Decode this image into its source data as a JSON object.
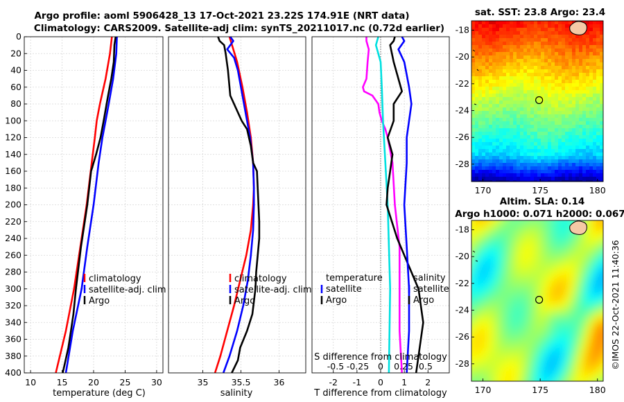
{
  "figure": {
    "title_line1": "Argo profile: aoml 5906428_13 17-Oct-2021 23.22S 174.91E (NRT data)",
    "title_line2": "Climatology: CARS2009. Satellite-adj clim: synTS_20211017.nc (0.72d earlier)",
    "copyright": "©IMOS 22-Oct-2021 11:40:36"
  },
  "colors": {
    "climatology": "#ff0000",
    "satellite": "#0000ff",
    "argo": "#000000",
    "temp_diff_argo": "#ff00ff",
    "temp_diff_sat": "#00e0e0"
  },
  "chart_data": [
    {
      "type": "line",
      "title": "",
      "xlabel": "temperature (deg C)",
      "ylabel": "",
      "xlim": [
        9,
        31
      ],
      "ylim": [
        400,
        0
      ],
      "xticks": [
        10,
        15,
        20,
        25,
        30
      ],
      "yticks": [
        0,
        20,
        40,
        60,
        80,
        100,
        120,
        140,
        160,
        180,
        200,
        220,
        240,
        260,
        280,
        300,
        320,
        340,
        360,
        380,
        400
      ],
      "legend": [
        "climatology",
        "satellite-adj. clim",
        "Argo"
      ],
      "series": [
        {
          "name": "climatology",
          "color": "#ff0000",
          "depth": [
            0,
            20,
            50,
            80,
            100,
            120,
            150,
            200,
            250,
            300,
            350,
            400
          ],
          "values": [
            22.9,
            22.6,
            21.9,
            21.0,
            20.5,
            20.2,
            19.7,
            18.9,
            17.9,
            16.9,
            15.6,
            14.0
          ]
        },
        {
          "name": "satellite-adj. clim",
          "color": "#0000ff",
          "depth": [
            0,
            20,
            50,
            80,
            100,
            120,
            150,
            200,
            250,
            300,
            350,
            400
          ],
          "values": [
            23.7,
            23.6,
            23.1,
            22.4,
            21.9,
            21.4,
            20.8,
            20.0,
            19.0,
            18.1,
            16.7,
            15.6
          ]
        },
        {
          "name": "Argo",
          "color": "#000000",
          "depth": [
            0,
            10,
            30,
            50,
            70,
            100,
            120,
            140,
            160,
            200,
            250,
            300,
            330,
            350,
            370,
            400
          ],
          "values": [
            23.5,
            23.3,
            23.2,
            22.8,
            22.3,
            21.6,
            21.1,
            20.4,
            19.6,
            19.0,
            18.0,
            17.2,
            16.8,
            16.4,
            16.0,
            15.1
          ]
        }
      ]
    },
    {
      "type": "line",
      "title": "",
      "xlabel": "salinity",
      "ylabel": "",
      "xlim": [
        34.55,
        36.35
      ],
      "ylim": [
        400,
        0
      ],
      "xticks": [
        35,
        35.5,
        36
      ],
      "legend": [
        "climatology",
        "satellite-adj. clim",
        "Argo"
      ],
      "series": [
        {
          "name": "climatology",
          "color": "#ff0000",
          "depth": [
            0,
            30,
            60,
            90,
            120,
            150,
            180,
            200,
            230,
            260,
            290,
            320,
            350,
            380,
            400
          ],
          "values": [
            35.35,
            35.45,
            35.52,
            35.58,
            35.63,
            35.66,
            35.67,
            35.66,
            35.63,
            35.57,
            35.49,
            35.41,
            35.32,
            35.23,
            35.16
          ]
        },
        {
          "name": "satellite-adj. clim",
          "color": "#0000ff",
          "depth": [
            0,
            5,
            15,
            25,
            40,
            60,
            90,
            120,
            150,
            180,
            200,
            230,
            260,
            290,
            320,
            350,
            380,
            400
          ],
          "values": [
            35.36,
            35.4,
            35.32,
            35.41,
            35.46,
            35.5,
            35.56,
            35.62,
            35.66,
            35.67,
            35.67,
            35.66,
            35.63,
            35.59,
            35.53,
            35.45,
            35.35,
            35.27
          ]
        },
        {
          "name": "Argo",
          "color": "#000000",
          "depth": [
            0,
            5,
            10,
            20,
            40,
            70,
            100,
            110,
            130,
            150,
            160,
            180,
            200,
            220,
            240,
            260,
            280,
            300,
            330,
            350,
            370,
            385,
            400
          ],
          "values": [
            35.2,
            35.22,
            35.28,
            35.3,
            35.33,
            35.36,
            35.51,
            35.58,
            35.63,
            35.66,
            35.71,
            35.72,
            35.73,
            35.74,
            35.74,
            35.72,
            35.7,
            35.69,
            35.65,
            35.58,
            35.49,
            35.46,
            35.38
          ]
        }
      ]
    },
    {
      "type": "line",
      "title": "",
      "xlabel": "T difference from climatology",
      "ylabel": "",
      "xlim": [
        -2.9,
        2.9
      ],
      "ylim": [
        400,
        0
      ],
      "xticks": [
        -2,
        -1,
        0,
        1,
        2
      ],
      "top_axis_label": "S difference from climatology",
      "top_ticks": [
        "-0.5",
        "-0.25",
        "0",
        "0.25",
        "0.5"
      ],
      "legend_left_header": "temperature",
      "legend_right_header": "salinity",
      "legend": [
        "satellite",
        "Argo"
      ],
      "legend_right": [
        "satellite",
        "Argo"
      ],
      "series": [
        {
          "name": "T diff Argo",
          "color": "#ff00ff",
          "depth": [
            0,
            5,
            15,
            30,
            50,
            60,
            65,
            70,
            80,
            90,
            100,
            110,
            120,
            150,
            200,
            250,
            300,
            350,
            400
          ],
          "values": [
            -0.6,
            -0.6,
            -0.5,
            -0.55,
            -0.6,
            -0.75,
            -0.7,
            -0.35,
            -0.1,
            -0.05,
            0.05,
            0.2,
            0.3,
            0.5,
            0.6,
            0.8,
            0.8,
            0.8,
            0.9
          ]
        },
        {
          "name": "T diff satellite",
          "color": "#00e0e0",
          "depth": [
            0,
            10,
            30,
            60,
            100,
            150,
            200,
            300,
            400
          ],
          "values": [
            -0.1,
            -0.2,
            0.0,
            0.05,
            0.1,
            0.2,
            0.3,
            0.4,
            0.35
          ]
        },
        {
          "name": "S diff Argo",
          "color": "#000000",
          "depth": [
            0,
            5,
            10,
            30,
            50,
            65,
            80,
            100,
            120,
            140,
            160,
            180,
            200,
            240,
            300,
            340,
            360,
            380,
            400
          ],
          "values": [
            0.6,
            0.55,
            0.4,
            0.55,
            0.75,
            0.9,
            0.55,
            0.55,
            0.3,
            0.5,
            0.4,
            0.3,
            0.25,
            0.7,
            1.6,
            1.8,
            1.7,
            1.6,
            1.5
          ]
        },
        {
          "name": "S diff satellite",
          "color": "#0000ff",
          "depth": [
            0,
            5,
            15,
            30,
            60,
            80,
            100,
            120,
            150,
            200,
            250,
            300,
            350,
            400
          ],
          "values": [
            0.9,
            1.0,
            0.75,
            1.0,
            1.2,
            1.3,
            1.2,
            1.1,
            1.1,
            1.0,
            1.1,
            1.2,
            1.2,
            1.1
          ]
        }
      ]
    },
    {
      "type": "heatmap",
      "title": "sat. SST: 23.8 Argo: 23.4",
      "xticks": [
        170,
        175,
        180
      ],
      "yticks": [
        -18,
        -20,
        -22,
        -24,
        -26,
        -28
      ],
      "xlim": [
        169,
        180.5
      ],
      "ylim": [
        -29.3,
        -17.3
      ],
      "profile_marker": {
        "lon": 174.91,
        "lat": -23.22
      }
    },
    {
      "type": "heatmap",
      "title": "Altim. SLA: 0.14",
      "subtitle": "Argo h1000: 0.071 h2000: 0.067",
      "xticks": [
        170,
        175,
        180
      ],
      "yticks": [
        -18,
        -20,
        -22,
        -24,
        -26,
        -28
      ],
      "xlim": [
        169,
        180.5
      ],
      "ylim": [
        -29.3,
        -17.3
      ],
      "profile_marker": {
        "lon": 174.91,
        "lat": -23.22
      }
    }
  ]
}
